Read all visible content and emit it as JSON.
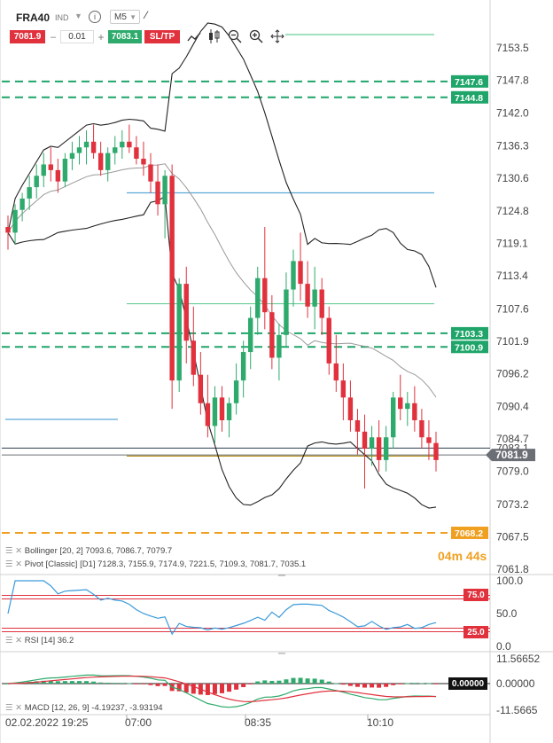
{
  "toolbar": {
    "symbol": "FRA40",
    "market": "IND",
    "timeframe": "M5",
    "sell_price": "7081.9",
    "minus": "–",
    "lot": "0.01",
    "plus": "+",
    "buy_price": "7083.1",
    "sltp_label": "SL/TP"
  },
  "colors": {
    "bull": "#2eaa6c",
    "bear": "#e0313d",
    "dash_green": "#1fa56a",
    "pivot_orange": "#f0a020",
    "price_grey": "#6b6f75"
  },
  "price_axis": {
    "ticks": [
      "7153.5",
      "7147.8",
      "7142.0",
      "7136.3",
      "7130.6",
      "7124.8",
      "7119.1",
      "7113.4",
      "7107.6",
      "7101.9",
      "7096.2",
      "7090.4",
      "7084.7",
      "7079.0",
      "7073.2",
      "7067.5",
      "7061.8"
    ],
    "badges": [
      {
        "label": "7147.6",
        "value": 7147.6,
        "kind": "green"
      },
      {
        "label": "7144.8",
        "value": 7144.8,
        "kind": "green"
      },
      {
        "label": "7103.3",
        "value": 7103.3,
        "kind": "green"
      },
      {
        "label": "7100.9",
        "value": 7100.9,
        "kind": "green"
      },
      {
        "label": "7068.2",
        "value": 7068.2,
        "kind": "orange"
      },
      {
        "label": "7081.9",
        "value": 7081.9,
        "kind": "price"
      }
    ],
    "hidden_label": "7083.1"
  },
  "timer": "04m 44s",
  "legends": {
    "bollinger": "Bollinger [20, 2] 7093.6, 7086.7, 7079.7",
    "pivot": "Pivot [Classic] [D1] 7128.3, 7155.9, 7174.9, 7221.5, 7109.3, 7081.7, 7035.1",
    "rsi": "RSI [14] 36.2",
    "macd": "MACD [12, 26, 9] -4.19237, -3.93194"
  },
  "rsi_axis": {
    "ticks": [
      "100.0",
      "50.0",
      "0.0"
    ],
    "upper_badge": "75.0",
    "lower_badge": "25.0"
  },
  "macd_axis": {
    "ticks": [
      "11.56652",
      "0.00000",
      "-11.5665"
    ],
    "zero_badge": "0.00000"
  },
  "time_axis": [
    "02.02.2022 19:25",
    "07:00",
    "08:35",
    "10:10"
  ],
  "chart_data": {
    "type": "candlestick",
    "symbol": "FRA40",
    "timeframe": "M5",
    "ylim": [
      7061.8,
      7157
    ],
    "ohlc": [
      [
        7122,
        7124,
        7118,
        7121
      ],
      [
        7121,
        7126,
        7119,
        7125
      ],
      [
        7125,
        7128,
        7123,
        7127
      ],
      [
        7127,
        7131,
        7125,
        7129
      ],
      [
        7129,
        7133,
        7127,
        7131
      ],
      [
        7131,
        7135,
        7129,
        7133
      ],
      [
        7133,
        7136,
        7130,
        7132
      ],
      [
        7132,
        7134,
        7128,
        7130
      ],
      [
        7130,
        7135,
        7129,
        7134
      ],
      [
        7134,
        7137,
        7132,
        7135
      ],
      [
        7135,
        7138,
        7133,
        7136
      ],
      [
        7136,
        7139,
        7133,
        7137
      ],
      [
        7137,
        7140,
        7134,
        7135
      ],
      [
        7135,
        7137,
        7131,
        7132
      ],
      [
        7132,
        7136,
        7130,
        7135
      ],
      [
        7135,
        7138,
        7133,
        7136
      ],
      [
        7136,
        7139,
        7134,
        7137
      ],
      [
        7137,
        7140,
        7135,
        7136
      ],
      [
        7136,
        7138,
        7133,
        7134
      ],
      [
        7134,
        7137,
        7131,
        7133
      ],
      [
        7133,
        7135,
        7128,
        7130
      ],
      [
        7130,
        7133,
        7124,
        7126
      ],
      [
        7126,
        7132,
        7120,
        7131
      ],
      [
        7131,
        7133,
        7090,
        7095
      ],
      [
        7095,
        7113,
        7093,
        7112
      ],
      [
        7112,
        7115,
        7098,
        7102
      ],
      [
        7102,
        7108,
        7094,
        7096
      ],
      [
        7096,
        7100,
        7089,
        7091
      ],
      [
        7091,
        7096,
        7085,
        7087
      ],
      [
        7087,
        7094,
        7084,
        7092
      ],
      [
        7092,
        7094,
        7086,
        7088
      ],
      [
        7088,
        7092,
        7085,
        7091
      ],
      [
        7091,
        7098,
        7089,
        7095
      ],
      [
        7095,
        7102,
        7092,
        7100
      ],
      [
        7100,
        7108,
        7097,
        7106
      ],
      [
        7106,
        7115,
        7103,
        7113
      ],
      [
        7113,
        7122,
        7104,
        7107
      ],
      [
        7107,
        7110,
        7097,
        7099
      ],
      [
        7099,
        7105,
        7095,
        7103
      ],
      [
        7103,
        7114,
        7101,
        7111
      ],
      [
        7111,
        7118,
        7108,
        7116
      ],
      [
        7116,
        7121,
        7109,
        7112
      ],
      [
        7112,
        7116,
        7106,
        7108
      ],
      [
        7108,
        7115,
        7104,
        7111
      ],
      [
        7111,
        7113,
        7103,
        7106
      ],
      [
        7106,
        7108,
        7096,
        7098
      ],
      [
        7098,
        7103,
        7093,
        7095
      ],
      [
        7095,
        7098,
        7088,
        7092
      ],
      [
        7092,
        7095,
        7086,
        7088
      ],
      [
        7088,
        7090,
        7082,
        7086
      ],
      [
        7086,
        7089,
        7076,
        7083
      ],
      [
        7083,
        7087,
        7080,
        7085
      ],
      [
        7085,
        7088,
        7079,
        7081
      ],
      [
        7081,
        7087,
        7079,
        7085
      ],
      [
        7085,
        7093,
        7083,
        7092
      ],
      [
        7092,
        7096,
        7088,
        7090
      ],
      [
        7090,
        7093,
        7087,
        7091
      ],
      [
        7091,
        7094,
        7086,
        7088
      ],
      [
        7088,
        7090,
        7083,
        7085
      ],
      [
        7085,
        7088,
        7081,
        7084
      ],
      [
        7084,
        7086,
        7079,
        7081
      ]
    ],
    "bollinger": {
      "period": 20,
      "mult": 2,
      "upper": 7093.6,
      "middle": 7086.7,
      "lower": 7079.7
    },
    "pivot_classic_d1": [
      7128.3,
      7155.9,
      7174.9,
      7221.5,
      7109.3,
      7081.7,
      7035.1
    ],
    "levels": {
      "sl_tp_upper": [
        7147.6,
        7144.8
      ],
      "sl_tp_mid": [
        7103.3,
        7100.9
      ],
      "order_line": 7068.2,
      "blue_line": 7128.0,
      "light_green_line": 7108.5
    },
    "current_bid": 7081.9,
    "current_ask": 7083.1,
    "rsi": {
      "period": 14,
      "value": 36.2,
      "upper": 75.0,
      "lower": 25.0,
      "ylim": [
        0,
        100
      ]
    },
    "macd": {
      "params": [
        12,
        26,
        9
      ],
      "macd": -4.19237,
      "signal": -3.93194,
      "ylim": [
        -11.5665,
        11.56652
      ]
    }
  }
}
